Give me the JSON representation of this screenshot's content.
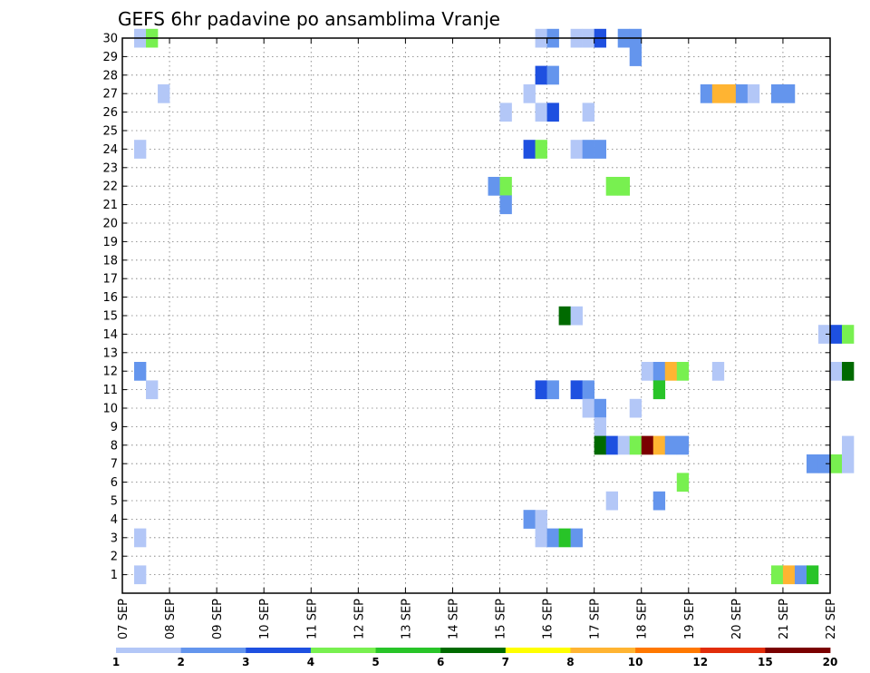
{
  "chart_data": {
    "type": "heatmap",
    "title": "GEFS 6hr padavine po ansamblima Vranje",
    "ylim": [
      0,
      30
    ],
    "y_ticks": [
      1,
      2,
      3,
      4,
      5,
      6,
      7,
      8,
      9,
      10,
      11,
      12,
      13,
      14,
      15,
      16,
      17,
      18,
      19,
      20,
      21,
      22,
      23,
      24,
      25,
      26,
      27,
      28,
      29,
      30
    ],
    "x_tick_labels": [
      "07 SEP",
      "08 SEP",
      "09 SEP",
      "10 SEP",
      "11 SEP",
      "12 SEP",
      "13 SEP",
      "14 SEP",
      "15 SEP",
      "16 SEP",
      "17 SEP",
      "18 SEP",
      "19 SEP",
      "20 SEP",
      "21 SEP",
      "22 SEP"
    ],
    "grid": true,
    "colorbar": {
      "colors": [
        "#b3c7f7",
        "#6495ed",
        "#1e50e0",
        "#78f050",
        "#28c428",
        "#006a00",
        "#ffff00",
        "#ffb432",
        "#ff7800",
        "#e12d0a",
        "#7a0000"
      ],
      "labels": [
        "1",
        "2",
        "3",
        "4",
        "5",
        "6",
        "7",
        "8",
        "10",
        "12",
        "15",
        "20"
      ]
    },
    "cells": [
      {
        "x": 0.25,
        "y": 30,
        "c": 0
      },
      {
        "x": 0.5,
        "y": 30,
        "c": 3
      },
      {
        "x": 8.75,
        "y": 30,
        "c": 0
      },
      {
        "x": 9.0,
        "y": 30,
        "c": 1
      },
      {
        "x": 9.5,
        "y": 30,
        "c": 0
      },
      {
        "x": 9.75,
        "y": 30,
        "c": 0
      },
      {
        "x": 10.0,
        "y": 30,
        "c": 2
      },
      {
        "x": 10.5,
        "y": 30,
        "c": 1
      },
      {
        "x": 10.75,
        "y": 30,
        "c": 1
      },
      {
        "x": 10.75,
        "y": 29,
        "c": 1
      },
      {
        "x": 8.75,
        "y": 28,
        "c": 2
      },
      {
        "x": 9.0,
        "y": 28,
        "c": 1
      },
      {
        "x": 0.75,
        "y": 27,
        "c": 0
      },
      {
        "x": 8.5,
        "y": 27,
        "c": 0
      },
      {
        "x": 12.25,
        "y": 27,
        "c": 1
      },
      {
        "x": 12.5,
        "y": 27,
        "c": 7
      },
      {
        "x": 12.75,
        "y": 27,
        "c": 7
      },
      {
        "x": 13.0,
        "y": 27,
        "c": 1
      },
      {
        "x": 13.25,
        "y": 27,
        "c": 0
      },
      {
        "x": 13.75,
        "y": 27,
        "c": 1
      },
      {
        "x": 14.0,
        "y": 27,
        "c": 1
      },
      {
        "x": 8.0,
        "y": 26,
        "c": 0
      },
      {
        "x": 8.75,
        "y": 26,
        "c": 0
      },
      {
        "x": 9.0,
        "y": 26,
        "c": 2
      },
      {
        "x": 9.75,
        "y": 26,
        "c": 0
      },
      {
        "x": 0.25,
        "y": 24,
        "c": 0
      },
      {
        "x": 8.5,
        "y": 24,
        "c": 2
      },
      {
        "x": 8.75,
        "y": 24,
        "c": 3
      },
      {
        "x": 9.5,
        "y": 24,
        "c": 0
      },
      {
        "x": 9.75,
        "y": 24,
        "c": 1
      },
      {
        "x": 10.0,
        "y": 24,
        "c": 1
      },
      {
        "x": 7.75,
        "y": 22,
        "c": 1
      },
      {
        "x": 8.0,
        "y": 22,
        "c": 3
      },
      {
        "x": 10.25,
        "y": 22,
        "c": 3
      },
      {
        "x": 10.5,
        "y": 22,
        "c": 3
      },
      {
        "x": 8.0,
        "y": 21,
        "c": 1
      },
      {
        "x": 9.25,
        "y": 15,
        "c": 5
      },
      {
        "x": 9.5,
        "y": 15,
        "c": 0
      },
      {
        "x": 14.75,
        "y": 14,
        "c": 0
      },
      {
        "x": 15.0,
        "y": 14,
        "c": 2
      },
      {
        "x": 15.25,
        "y": 14,
        "c": 3
      },
      {
        "x": 0.25,
        "y": 12,
        "c": 1
      },
      {
        "x": 11.0,
        "y": 12,
        "c": 0
      },
      {
        "x": 11.25,
        "y": 12,
        "c": 1
      },
      {
        "x": 11.5,
        "y": 12,
        "c": 7
      },
      {
        "x": 11.75,
        "y": 12,
        "c": 3
      },
      {
        "x": 12.5,
        "y": 12,
        "c": 0
      },
      {
        "x": 15.0,
        "y": 12,
        "c": 0
      },
      {
        "x": 15.25,
        "y": 12,
        "c": 5
      },
      {
        "x": 0.5,
        "y": 11,
        "c": 0
      },
      {
        "x": 8.75,
        "y": 11,
        "c": 2
      },
      {
        "x": 9.0,
        "y": 11,
        "c": 1
      },
      {
        "x": 9.5,
        "y": 11,
        "c": 2
      },
      {
        "x": 9.75,
        "y": 11,
        "c": 1
      },
      {
        "x": 11.25,
        "y": 11,
        "c": 4
      },
      {
        "x": 9.75,
        "y": 10,
        "c": 0
      },
      {
        "x": 10.0,
        "y": 10,
        "c": 1
      },
      {
        "x": 10.75,
        "y": 10,
        "c": 0
      },
      {
        "x": 10.0,
        "y": 9,
        "c": 0
      },
      {
        "x": 10.0,
        "y": 8,
        "c": 5
      },
      {
        "x": 10.25,
        "y": 8,
        "c": 2
      },
      {
        "x": 10.5,
        "y": 8,
        "c": 0
      },
      {
        "x": 10.75,
        "y": 8,
        "c": 3
      },
      {
        "x": 11.0,
        "y": 8,
        "c": 10
      },
      {
        "x": 11.25,
        "y": 8,
        "c": 7
      },
      {
        "x": 11.5,
        "y": 8,
        "c": 1
      },
      {
        "x": 11.75,
        "y": 8,
        "c": 1
      },
      {
        "x": 15.25,
        "y": 8,
        "c": 0
      },
      {
        "x": 14.5,
        "y": 7,
        "c": 1
      },
      {
        "x": 14.75,
        "y": 7,
        "c": 1
      },
      {
        "x": 15.0,
        "y": 7,
        "c": 3
      },
      {
        "x": 15.25,
        "y": 7,
        "c": 0
      },
      {
        "x": 11.75,
        "y": 6,
        "c": 3
      },
      {
        "x": 10.25,
        "y": 5,
        "c": 0
      },
      {
        "x": 11.25,
        "y": 5,
        "c": 1
      },
      {
        "x": 8.5,
        "y": 4,
        "c": 1
      },
      {
        "x": 8.75,
        "y": 4,
        "c": 0
      },
      {
        "x": 0.25,
        "y": 3,
        "c": 0
      },
      {
        "x": 8.75,
        "y": 3,
        "c": 0
      },
      {
        "x": 9.0,
        "y": 3,
        "c": 1
      },
      {
        "x": 9.25,
        "y": 3,
        "c": 4
      },
      {
        "x": 9.5,
        "y": 3,
        "c": 1
      },
      {
        "x": 0.25,
        "y": 1,
        "c": 0
      },
      {
        "x": 13.75,
        "y": 1,
        "c": 3
      },
      {
        "x": 14.0,
        "y": 1,
        "c": 7
      },
      {
        "x": 14.25,
        "y": 1,
        "c": 1
      },
      {
        "x": 14.5,
        "y": 1,
        "c": 4
      }
    ]
  }
}
